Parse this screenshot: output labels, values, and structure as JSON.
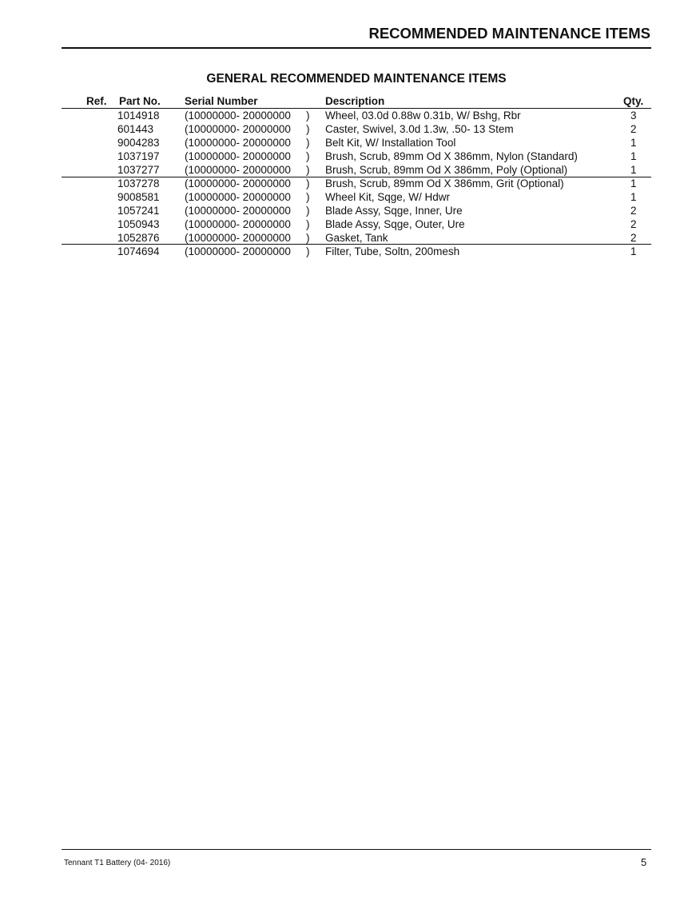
{
  "header": {
    "title": "RECOMMENDED MAINTENANCE ITEMS"
  },
  "section": {
    "title": "GENERAL RECOMMENDED MAINTENANCE ITEMS"
  },
  "table": {
    "columns": {
      "ref": "Ref.",
      "part": "Part No.",
      "serial": "Serial Number",
      "desc": "Description",
      "qty": "Qty."
    },
    "rows": [
      {
        "part": "1014918",
        "serial": "(10000000- 20000000",
        "close": ")",
        "desc": "Wheel, 03.0d 0.88w 0.31b, W/ Bshg, Rbr",
        "qty": "3"
      },
      {
        "part": "601443",
        "serial": "(10000000- 20000000",
        "close": ")",
        "desc": "Caster, Swivel, 3.0d 1.3w, .50- 13 Stem",
        "qty": "2"
      },
      {
        "part": "9004283",
        "serial": "(10000000- 20000000",
        "close": ")",
        "desc": "Belt Kit, W/ Installation Tool",
        "qty": "1"
      },
      {
        "part": "1037197",
        "serial": "(10000000- 20000000",
        "close": ")",
        "desc": "Brush, Scrub, 89mm Od X 386mm, Nylon (Standard)",
        "qty": "1"
      },
      {
        "part": "1037277",
        "serial": "(10000000- 20000000",
        "close": ")",
        "desc": "Brush, Scrub, 89mm Od X 386mm, Poly (Optional)",
        "qty": "1"
      },
      {
        "part": "1037278",
        "serial": "(10000000- 20000000",
        "close": ")",
        "desc": "Brush, Scrub, 89mm Od X 386mm, Grit (Optional)",
        "qty": "1"
      },
      {
        "part": "9008581",
        "serial": "(10000000- 20000000",
        "close": ")",
        "desc": "Wheel Kit, Sqge,  W/ Hdwr",
        "qty": "1"
      },
      {
        "part": "1057241",
        "serial": "(10000000- 20000000",
        "close": ")",
        "desc": "Blade Assy, Sqge, Inner, Ure",
        "qty": "2"
      },
      {
        "part": "1050943",
        "serial": "(10000000- 20000000",
        "close": ")",
        "desc": "Blade Assy, Sqge, Outer, Ure",
        "qty": "2"
      },
      {
        "part": "1052876",
        "serial": "(10000000- 20000000",
        "close": ")",
        "desc": "Gasket, Tank",
        "qty": "2"
      },
      {
        "part": "1074694",
        "serial": "(10000000- 20000000",
        "close": ")",
        "desc": "Filter, Tube, Soltn, 200mesh",
        "qty": "1"
      }
    ]
  },
  "footer": {
    "text": "Tennant T1 Battery  (04- 2016)",
    "page": "5"
  }
}
